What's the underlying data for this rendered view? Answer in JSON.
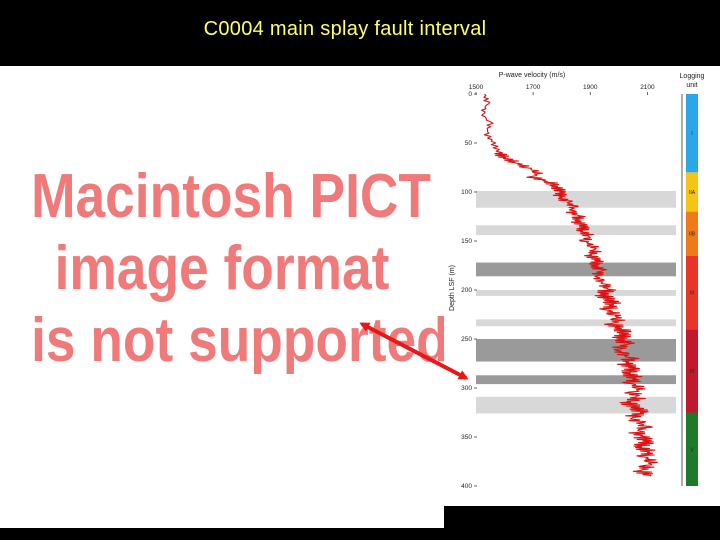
{
  "slide": {
    "title": "C0004 main splay fault interval",
    "placeholder_lines": [
      "Macintosh PICT",
      "image format",
      "is not supported"
    ]
  },
  "colors": {
    "background": "#000000",
    "title": "#ffff66",
    "placeholder_text": "#f07a7a",
    "curve": "#dd1111",
    "arrow": "#e81818",
    "light_band": "#d8d8d8",
    "dark_band": "#9a9a9a"
  },
  "chart_data": {
    "type": "line",
    "title": "",
    "xlabel": "P-wave velocity (m/s)",
    "ylabel": "Depth LSF (m)",
    "xlim": [
      1500,
      2200
    ],
    "ylim": [
      0,
      400
    ],
    "y_inverted": true,
    "x_ticks": [
      1500,
      1700,
      1900,
      2100
    ],
    "y_ticks": [
      0,
      50,
      100,
      150,
      200,
      250,
      300,
      350,
      400
    ],
    "series": [
      {
        "name": "",
        "depth": [
          0,
          10,
          20,
          30,
          40,
          50,
          60,
          65,
          70,
          75,
          80,
          85,
          90,
          95,
          100,
          105,
          110,
          115,
          120,
          125,
          130,
          135,
          140,
          145,
          150,
          155,
          160,
          165,
          170,
          175,
          180,
          185,
          190,
          195,
          200,
          205,
          210,
          215,
          220,
          225,
          230,
          235,
          240,
          245,
          250,
          255,
          260,
          265,
          270,
          275,
          280,
          285,
          290,
          295,
          300,
          305,
          310,
          315,
          320,
          325,
          330,
          335,
          340,
          345,
          350,
          355,
          360,
          365,
          370,
          375,
          380,
          385,
          390
        ],
        "velocity": [
          1530,
          1540,
          1520,
          1550,
          1535,
          1560,
          1580,
          1600,
          1640,
          1680,
          1720,
          1700,
          1760,
          1780,
          1800,
          1790,
          1820,
          1840,
          1830,
          1860,
          1850,
          1880,
          1870,
          1900,
          1880,
          1910,
          1920,
          1900,
          1930,
          1910,
          1940,
          1920,
          1930,
          1950,
          1960,
          1940,
          1970,
          1980,
          1960,
          1990,
          2000,
          1980,
          2010,
          2020,
          2000,
          2030,
          1990,
          2010,
          2040,
          2020,
          2050,
          2030,
          2060,
          2040,
          2080,
          2050,
          2070,
          2030,
          2060,
          2080,
          2040,
          2070,
          2090,
          2060,
          2080,
          2100,
          2070,
          2110,
          2090,
          2120,
          2100,
          2080,
          2110
        ]
      }
    ],
    "bands": [
      {
        "from": 99,
        "to": 116,
        "shade": "light"
      },
      {
        "from": 134,
        "to": 144,
        "shade": "light"
      },
      {
        "from": 172,
        "to": 186,
        "shade": "dark"
      },
      {
        "from": 200,
        "to": 206,
        "shade": "light"
      },
      {
        "from": 230,
        "to": 237,
        "shade": "light"
      },
      {
        "from": 250,
        "to": 273,
        "shade": "dark"
      },
      {
        "from": 287,
        "to": 296,
        "shade": "dark"
      },
      {
        "from": 309,
        "to": 326,
        "shade": "light"
      }
    ],
    "logging_units": {
      "header": [
        "Logging",
        "unit"
      ],
      "units": [
        {
          "label": "I",
          "from": 0,
          "to": 80,
          "color": "#2aa7e6"
        },
        {
          "label": "IIA",
          "from": 80,
          "to": 120,
          "color": "#f5c516"
        },
        {
          "label": "IIB",
          "from": 120,
          "to": 165,
          "color": "#f07a1a"
        },
        {
          "label": "III",
          "from": 165,
          "to": 240,
          "color": "#e8352a"
        },
        {
          "label": "IV",
          "from": 240,
          "to": 325,
          "color": "#c0182c"
        },
        {
          "label": "V",
          "from": 325,
          "to": 400,
          "color": "#1e7a2a"
        }
      ]
    }
  }
}
